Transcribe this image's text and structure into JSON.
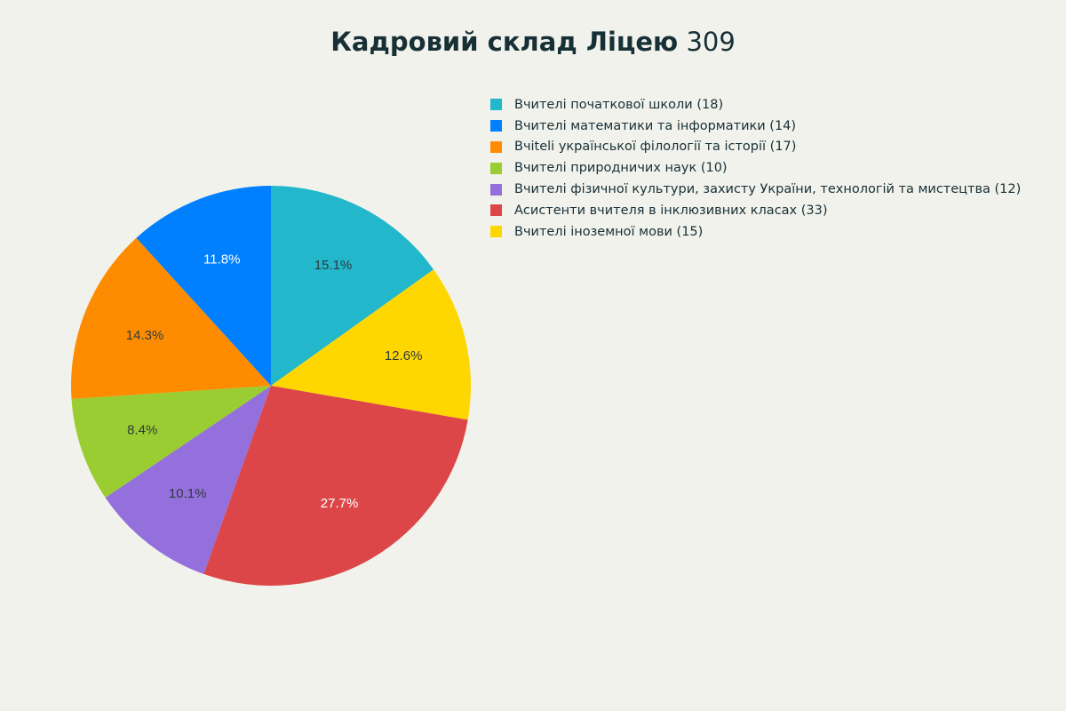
{
  "title": {
    "bold": "Кадровий склад Ліцею",
    "number": "309"
  },
  "chart_data": {
    "type": "pie",
    "title": "Кадровий склад Ліцею 309",
    "start_angle_deg": 0,
    "direction": "clockwise",
    "categories": [
      "Вчителі початкової школи",
      "Вчителі іноземної мови",
      "Асистенти вчителя в інклюзивних класах",
      "Вчителі фізичної культури, захисту України, технологій та мистецтва",
      "Вчителі природничих наук",
      "Вчітeli української філології та історії",
      "Вчителі математики та інформатики"
    ],
    "values": [
      18,
      15,
      33,
      12,
      10,
      17,
      14
    ],
    "percent_labels": [
      "15.1%",
      "12.6%",
      "27.7%",
      "10.1%",
      "8.4%",
      "14.3%",
      "11.8%"
    ],
    "colors": [
      "#22b7cb",
      "#ffd700",
      "#dc4649",
      "#9370db",
      "#9acd32",
      "#ff8c00",
      "#0080ff"
    ],
    "label_colors": [
      "#2f3b3e",
      "#2f3b3e",
      "#ffffff",
      "#2f3b3e",
      "#2f3b3e",
      "#2f3b3e",
      "#ffffff"
    ],
    "legend_position": "top-right"
  },
  "legend": {
    "items": [
      {
        "label": "Вчителі початкової школи (18)",
        "color": "#22b7cb"
      },
      {
        "label": "Вчителі математики та інформатики (14)",
        "color": "#0080ff"
      },
      {
        "label": "Вчiteli української філології та історії (17)",
        "color": "#ff8c00"
      },
      {
        "label": "Вчителі природничих наук (10)",
        "color": "#9acd32"
      },
      {
        "label": "Вчителі фізичної культури, захисту України, технологій та мистецтва (12)",
        "color": "#9370db"
      },
      {
        "label": "Асистенти вчителя в інклюзивних класах (33)",
        "color": "#dc4649"
      },
      {
        "label": "Вчителі іноземної мови (15)",
        "color": "#ffd700"
      }
    ]
  }
}
